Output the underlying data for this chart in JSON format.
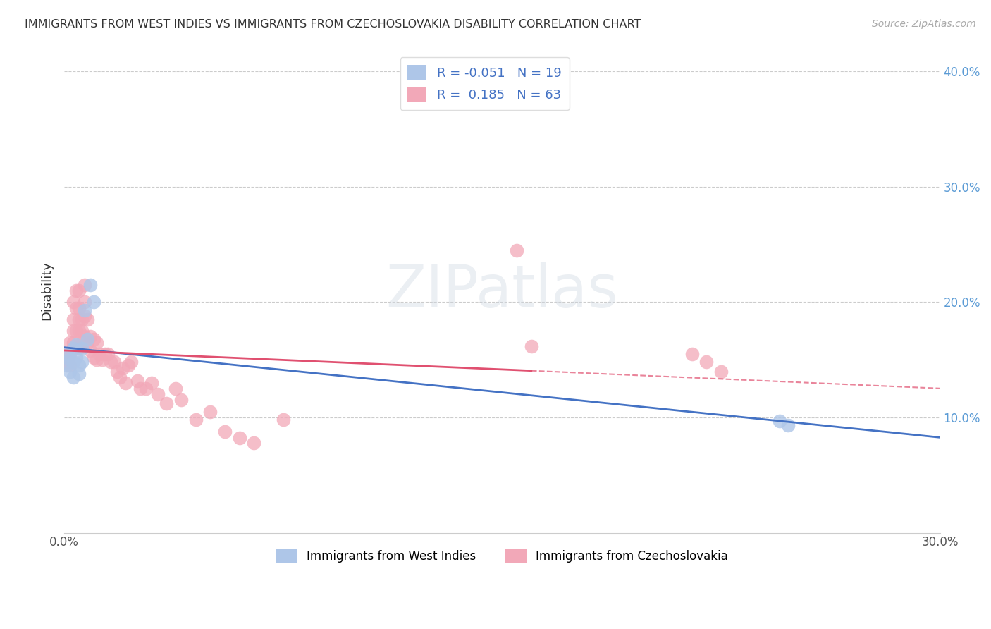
{
  "title": "IMMIGRANTS FROM WEST INDIES VS IMMIGRANTS FROM CZECHOSLOVAKIA DISABILITY CORRELATION CHART",
  "source": "Source: ZipAtlas.com",
  "ylabel_label": "Disability",
  "xlim": [
    0.0,
    0.3
  ],
  "ylim": [
    0.0,
    0.42
  ],
  "color_blue": "#aec6e8",
  "color_pink": "#f2a8b8",
  "line_blue": "#4472c4",
  "line_pink": "#e05070",
  "r1": -0.051,
  "n1": 19,
  "r2": 0.185,
  "n2": 63,
  "west_indies_x": [
    0.001,
    0.001,
    0.002,
    0.002,
    0.003,
    0.003,
    0.003,
    0.004,
    0.004,
    0.005,
    0.005,
    0.006,
    0.006,
    0.007,
    0.008,
    0.009,
    0.01,
    0.245,
    0.248
  ],
  "west_indies_y": [
    0.155,
    0.145,
    0.15,
    0.14,
    0.16,
    0.148,
    0.135,
    0.163,
    0.152,
    0.145,
    0.138,
    0.16,
    0.148,
    0.193,
    0.168,
    0.215,
    0.2,
    0.097,
    0.093
  ],
  "czechoslovakia_x": [
    0.001,
    0.001,
    0.002,
    0.002,
    0.002,
    0.003,
    0.003,
    0.003,
    0.003,
    0.004,
    0.004,
    0.004,
    0.005,
    0.005,
    0.005,
    0.005,
    0.005,
    0.006,
    0.006,
    0.006,
    0.007,
    0.007,
    0.007,
    0.007,
    0.008,
    0.008,
    0.009,
    0.009,
    0.01,
    0.01,
    0.011,
    0.011,
    0.012,
    0.013,
    0.014,
    0.015,
    0.016,
    0.017,
    0.018,
    0.019,
    0.02,
    0.021,
    0.022,
    0.023,
    0.025,
    0.026,
    0.028,
    0.03,
    0.032,
    0.035,
    0.038,
    0.04,
    0.045,
    0.05,
    0.055,
    0.06,
    0.065,
    0.075,
    0.155,
    0.16,
    0.215,
    0.22,
    0.225
  ],
  "czechoslovakia_y": [
    0.155,
    0.148,
    0.165,
    0.155,
    0.145,
    0.2,
    0.185,
    0.175,
    0.165,
    0.21,
    0.195,
    0.175,
    0.21,
    0.195,
    0.185,
    0.175,
    0.16,
    0.185,
    0.175,
    0.165,
    0.215,
    0.2,
    0.188,
    0.17,
    0.185,
    0.165,
    0.17,
    0.158,
    0.168,
    0.152,
    0.165,
    0.15,
    0.155,
    0.15,
    0.155,
    0.155,
    0.148,
    0.148,
    0.14,
    0.135,
    0.143,
    0.13,
    0.145,
    0.148,
    0.132,
    0.125,
    0.125,
    0.13,
    0.12,
    0.112,
    0.125,
    0.115,
    0.098,
    0.105,
    0.088,
    0.082,
    0.078,
    0.098,
    0.245,
    0.162,
    0.155,
    0.148,
    0.14
  ]
}
